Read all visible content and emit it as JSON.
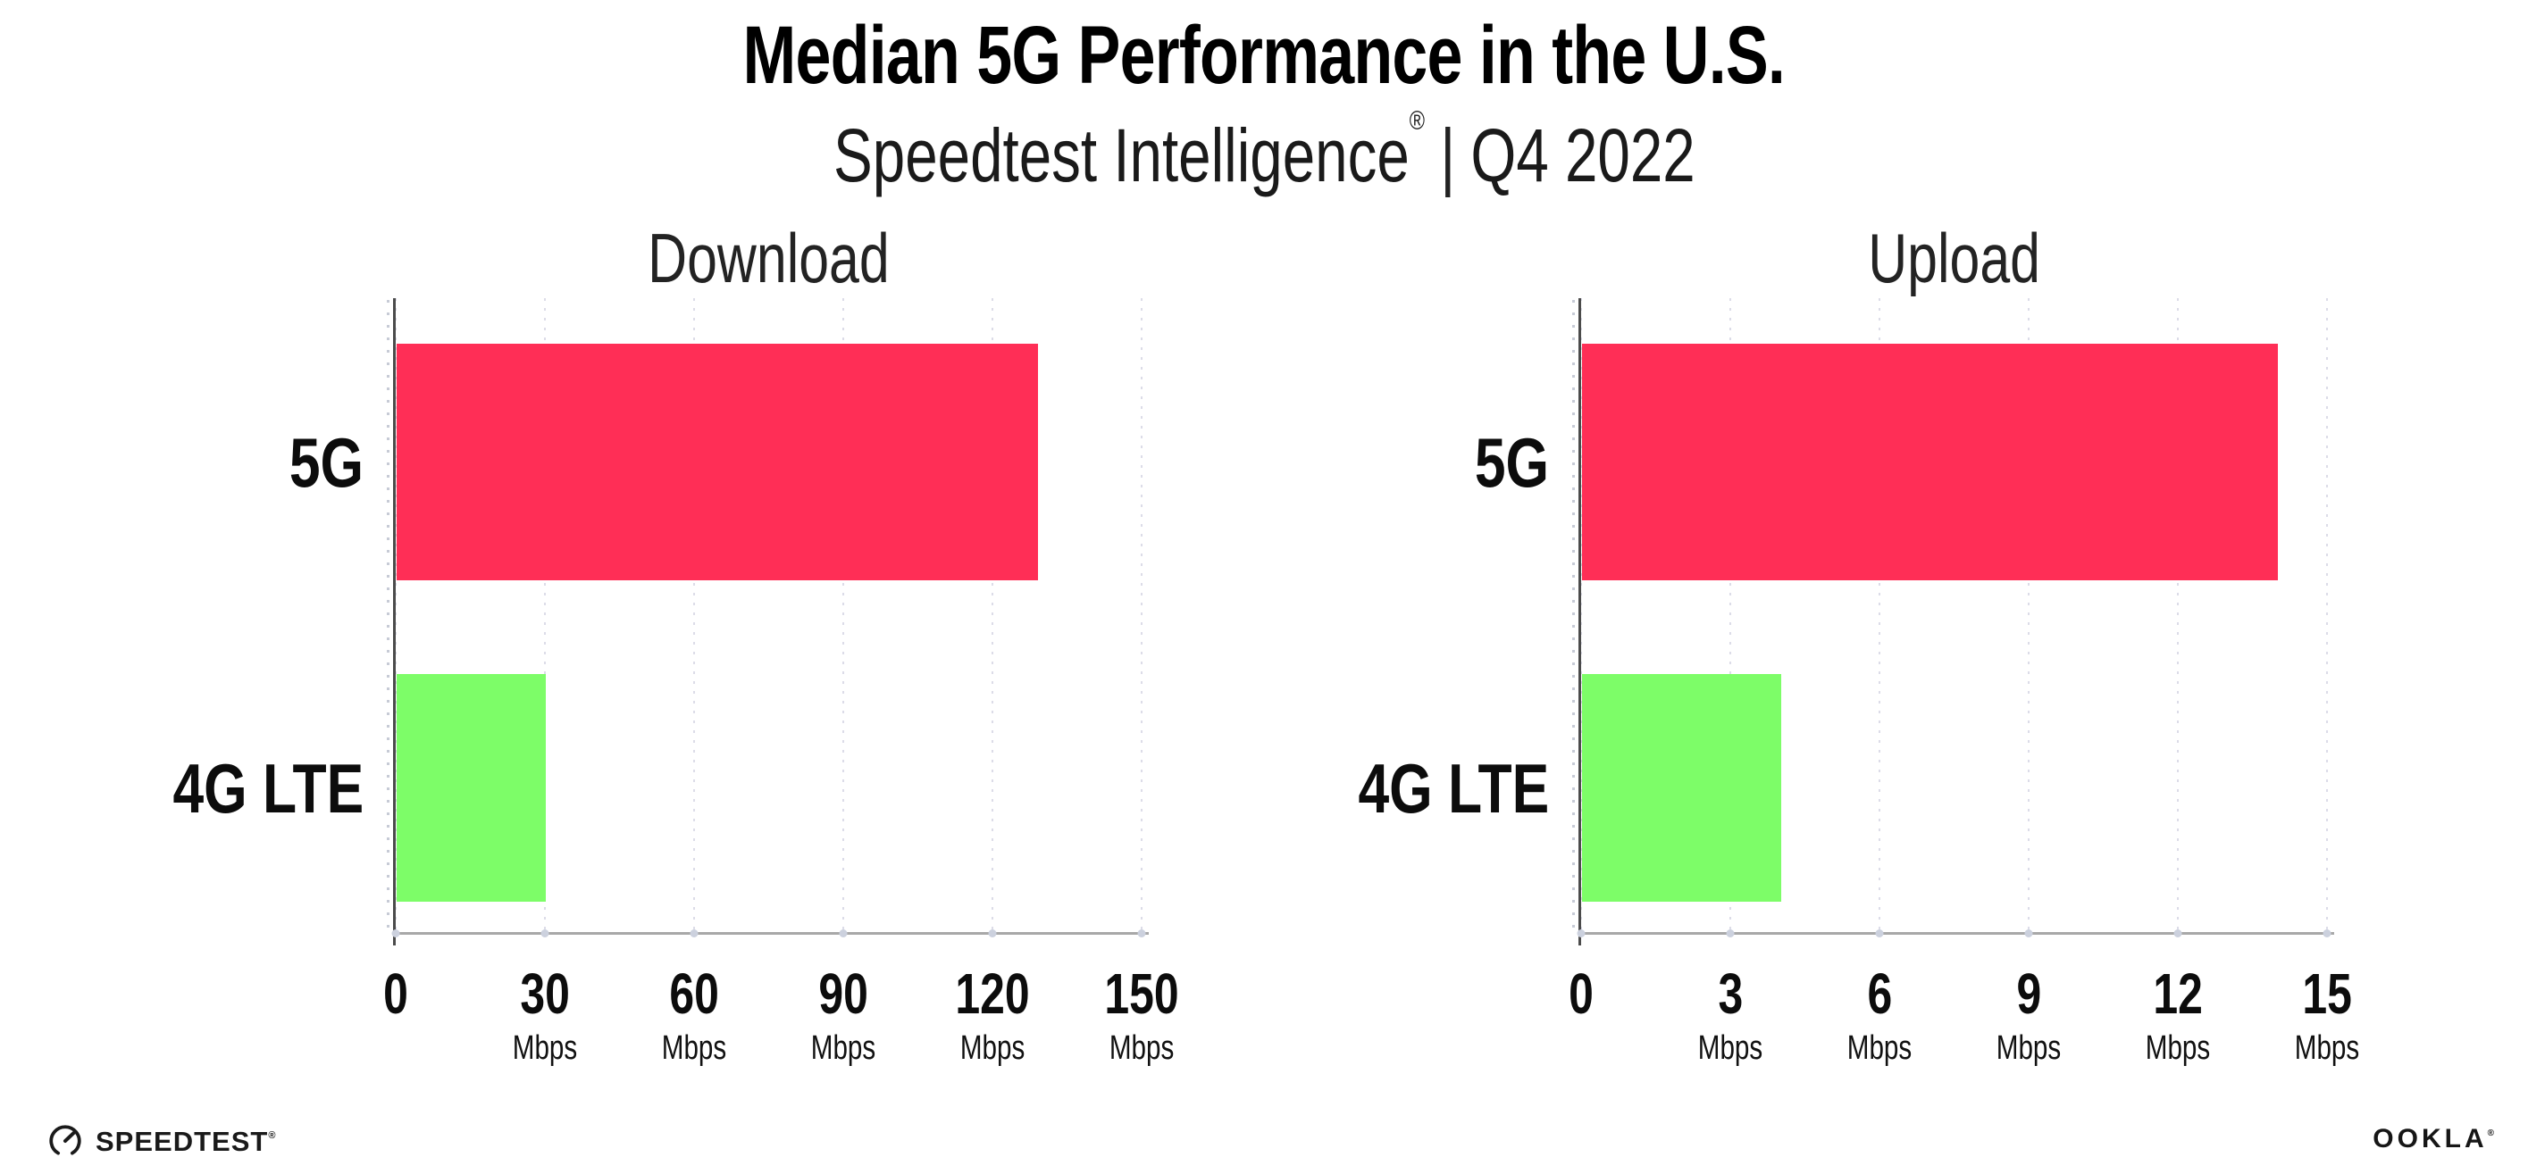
{
  "header": {
    "title": "Median 5G Performance in the U.S.",
    "subtitle_brand": "Speedtest Intelligence",
    "subtitle_registered_mark": "®",
    "subtitle_separator": "|",
    "subtitle_period": "Q4 2022"
  },
  "colors": {
    "bar_5g": "#FF2E56",
    "bar_4g_lte": "#7DFD68",
    "grid_dotted": "#DCDCE8",
    "x_axis": "#A8A8A8",
    "y_axis": "#4B4B4B",
    "text": "#111111"
  },
  "chart_data": [
    {
      "type": "bar",
      "orientation": "horizontal",
      "title": "Download",
      "categories": [
        "5G",
        "4G LTE"
      ],
      "values": [
        129,
        30
      ],
      "unit": "Mbps",
      "xlim": [
        0,
        150
      ],
      "xticks": [
        0,
        30,
        60,
        90,
        120,
        150
      ],
      "grid": "dotted-vertical",
      "legend": "none",
      "bar_colors": [
        "#FF2E56",
        "#7DFD68"
      ]
    },
    {
      "type": "bar",
      "orientation": "horizontal",
      "title": "Upload",
      "categories": [
        "5G",
        "4G LTE"
      ],
      "values": [
        14,
        4
      ],
      "unit": "Mbps",
      "xlim": [
        0,
        15
      ],
      "xticks": [
        0,
        3,
        6,
        9,
        12,
        15
      ],
      "grid": "dotted-vertical",
      "legend": "none",
      "bar_colors": [
        "#FF2E56",
        "#7DFD68"
      ]
    }
  ],
  "footer": {
    "speedtest_icon": "gauge-icon",
    "speedtest_label": "SPEEDTEST",
    "speedtest_mark": "®",
    "ookla_label": "OOKLA",
    "ookla_mark": "®"
  }
}
